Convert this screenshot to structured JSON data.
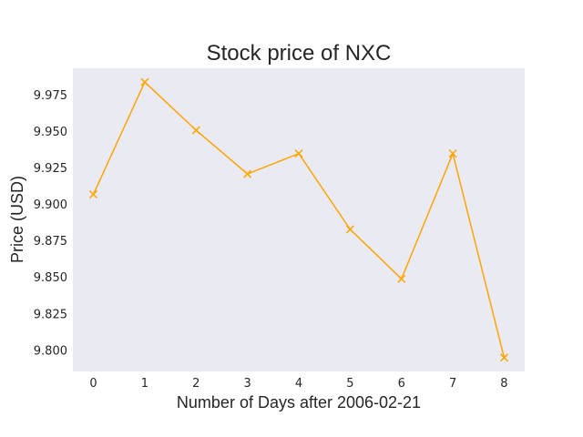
{
  "chart_data": {
    "type": "line",
    "title": "Stock price of NXC",
    "xlabel": "Number of Days after 2006-02-21",
    "ylabel": "Price (USD)",
    "x": [
      0,
      1,
      2,
      3,
      4,
      5,
      6,
      7,
      8
    ],
    "series": [
      {
        "values": [
          9.907,
          9.984,
          9.951,
          9.921,
          9.935,
          9.883,
          9.849,
          9.935,
          9.795
        ],
        "marker": "x"
      }
    ],
    "xticks": [
      "0",
      "1",
      "2",
      "3",
      "4",
      "5",
      "6",
      "7",
      "8"
    ],
    "yticks": [
      "9.800",
      "9.825",
      "9.850",
      "9.875",
      "9.900",
      "9.925",
      "9.950",
      "9.975"
    ],
    "xlim": [
      -0.4,
      8.4
    ],
    "ylim": [
      9.7855,
      9.9935
    ],
    "grid": false,
    "colors": {
      "line": "#ffa500",
      "plot_background": "#eaeaf2",
      "text": "#262626"
    }
  }
}
